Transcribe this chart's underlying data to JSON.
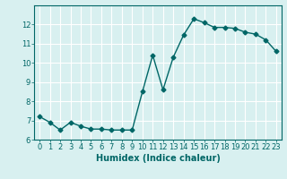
{
  "x": [
    0,
    1,
    2,
    3,
    4,
    5,
    6,
    7,
    8,
    9,
    10,
    11,
    12,
    13,
    14,
    15,
    16,
    17,
    18,
    19,
    20,
    21,
    22,
    23
  ],
  "y": [
    7.2,
    6.9,
    6.5,
    6.9,
    6.7,
    6.55,
    6.55,
    6.5,
    6.5,
    6.5,
    8.5,
    10.4,
    8.6,
    10.3,
    11.45,
    12.3,
    12.1,
    11.85,
    11.85,
    11.8,
    11.6,
    11.5,
    11.2,
    10.6
  ],
  "line_color": "#006666",
  "marker": "D",
  "markersize": 2.5,
  "linewidth": 1.0,
  "background_color": "#d8f0f0",
  "grid_color": "#ffffff",
  "xlabel": "Humidex (Indice chaleur)",
  "xlabel_fontsize": 7,
  "tick_fontsize": 6,
  "ylim": [
    6,
    13
  ],
  "xlim": [
    -0.5,
    23.5
  ],
  "yticks": [
    6,
    7,
    8,
    9,
    10,
    11,
    12
  ],
  "xticks": [
    0,
    1,
    2,
    3,
    4,
    5,
    6,
    7,
    8,
    9,
    10,
    11,
    12,
    13,
    14,
    15,
    16,
    17,
    18,
    19,
    20,
    21,
    22,
    23
  ]
}
